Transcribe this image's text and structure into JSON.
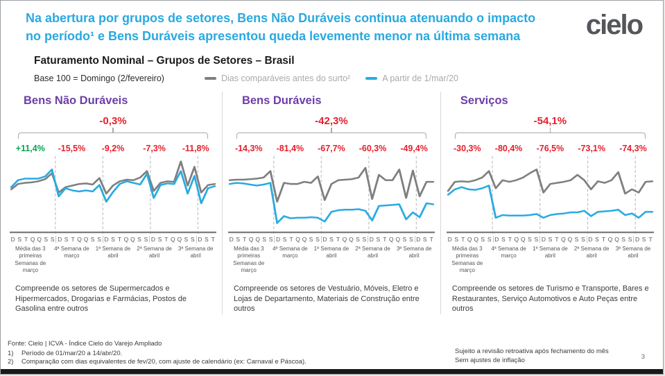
{
  "header": {
    "headline_line1": "Na abertura por grupos de setores, Bens Não Duráveis continua atenuando o impacto",
    "headline_line2": "no período¹ e Bens Duráveis apresentou queda levemente menor na última semana",
    "logo_text": "cielo"
  },
  "title_block": {
    "title": "Faturamento Nominal – Grupos de Setores – Brasil",
    "base_note": "Base 100 = Domingo (2/fevereiro)",
    "legend": [
      {
        "label": "Dias comparáveis antes do surto²",
        "color": "#7F7F7F"
      },
      {
        "label": "A partir de 1/mar/20",
        "color": "#29ABE2"
      }
    ]
  },
  "colors": {
    "accent_blue": "#29A9E1",
    "purple": "#6C3EA6",
    "red": "#E4202C",
    "green": "#00A651",
    "gray_line": "#7F7F7F",
    "cyan_line": "#29ABE2"
  },
  "charts_common": {
    "day_letters": [
      "D",
      "S",
      "T",
      "Q",
      "Q",
      "S",
      "S",
      "D",
      "S",
      "T",
      "Q",
      "Q",
      "S",
      "S",
      "D",
      "S",
      "T",
      "Q",
      "Q",
      "S",
      "S",
      "D",
      "S",
      "T",
      "Q",
      "Q",
      "S",
      "S",
      "D",
      "S",
      "T"
    ],
    "week_labels": [
      "Média das 3 primeiras Semanas de março",
      "4ª Semana de março",
      "1ª Semana de abril",
      "2ª Semana de abril",
      "3ª Semana de abril"
    ]
  },
  "sections": [
    {
      "title": "Bens Não Duráveis",
      "total": "-0,3%",
      "weekly": [
        {
          "value": "+11,4%",
          "color": "#00A651"
        },
        {
          "value": "-15,5%",
          "color": "#E4202C"
        },
        {
          "value": "-9,2%",
          "color": "#E4202C"
        },
        {
          "value": "-7,3%",
          "color": "#E4202C"
        },
        {
          "value": "-11,8%",
          "color": "#E4202C"
        }
      ],
      "description": "Compreende os setores de Supermercados e Hipermercados, Drogarias e Farmácias, Postos de Gasolina entre outros"
    },
    {
      "title": "Bens Duráveis",
      "total": "-42,3%",
      "weekly": [
        {
          "value": "-14,3%",
          "color": "#E4202C"
        },
        {
          "value": "-81,4%",
          "color": "#E4202C"
        },
        {
          "value": "-67,7%",
          "color": "#E4202C"
        },
        {
          "value": "-60,3%",
          "color": "#E4202C"
        },
        {
          "value": "-49,4%",
          "color": "#E4202C"
        }
      ],
      "description": "Compreende os setores de Vestuário, Móveis, Eletro e Lojas de Departamento, Materiais de Construção entre outros"
    },
    {
      "title": "Serviços",
      "total": "-54,1%",
      "weekly": [
        {
          "value": "-30,3%",
          "color": "#E4202C"
        },
        {
          "value": "-80,4%",
          "color": "#E4202C"
        },
        {
          "value": "-76,5%",
          "color": "#E4202C"
        },
        {
          "value": "-73,1%",
          "color": "#E4202C"
        },
        {
          "value": "-74,3%",
          "color": "#E4202C"
        }
      ],
      "description": "Compreende os setores de Turismo e Transporte, Bares e Restaurantes, Serviço Automotivos e Auto Peças entre outros"
    }
  ],
  "chart_data": [
    {
      "type": "line",
      "title": "Bens Não Duráveis",
      "subtitle": "Base 100 = Domingo (2/fevereiro)",
      "total_change": "-0,3%",
      "weekly_changes": [
        "+11,4%",
        "-15,5%",
        "-9,2%",
        "-7,3%",
        "-11,8%"
      ],
      "x_labels": [
        "D",
        "S",
        "T",
        "Q",
        "Q",
        "S",
        "S",
        "D",
        "S",
        "T",
        "Q",
        "Q",
        "S",
        "S",
        "D",
        "S",
        "T",
        "Q",
        "Q",
        "S",
        "S",
        "D",
        "S",
        "T",
        "Q",
        "Q",
        "S",
        "S",
        "D",
        "S",
        "T"
      ],
      "week_groups": [
        "Média das 3 primeiras Semanas de março",
        "4ª Semana de março",
        "1ª Semana de abril",
        "2ª Semana de abril",
        "3ª Semana de abril"
      ],
      "ylim": [
        0,
        140
      ],
      "grid": false,
      "series": [
        {
          "name": "Dias comparáveis antes do surto",
          "color": "#7F7F7F",
          "values": [
            78,
            88,
            90,
            91,
            93,
            97,
            108,
            72,
            82,
            85,
            88,
            89,
            87,
            99,
            70,
            85,
            93,
            96,
            95,
            100,
            112,
            75,
            90,
            93,
            92,
            130,
            85,
            120,
            72,
            86,
            88
          ]
        },
        {
          "name": "A partir de 1/mar/20",
          "color": "#29ABE2",
          "values": [
            82,
            95,
            98,
            98,
            98,
            102,
            115,
            65,
            80,
            76,
            74,
            76,
            74,
            86,
            55,
            73,
            88,
            93,
            90,
            87,
            107,
            62,
            86,
            89,
            88,
            112,
            70,
            103,
            52,
            80,
            84
          ]
        }
      ]
    },
    {
      "type": "line",
      "title": "Bens Duráveis",
      "subtitle": "Base 100 = Domingo (2/fevereiro)",
      "total_change": "-42,3%",
      "weekly_changes": [
        "-14,3%",
        "-81,4%",
        "-67,7%",
        "-60,3%",
        "-49,4%"
      ],
      "x_labels": [
        "D",
        "S",
        "T",
        "Q",
        "Q",
        "S",
        "S",
        "D",
        "S",
        "T",
        "Q",
        "Q",
        "S",
        "S",
        "D",
        "S",
        "T",
        "Q",
        "Q",
        "S",
        "S",
        "D",
        "S",
        "T",
        "Q",
        "Q",
        "S",
        "S",
        "D",
        "S",
        "T"
      ],
      "week_groups": [
        "Média das 3 primeiras Semanas de março",
        "4ª Semana de março",
        "1ª Semana de abril",
        "2ª Semana de abril",
        "3ª Semana de abril"
      ],
      "ylim": [
        0,
        140
      ],
      "grid": false,
      "series": [
        {
          "name": "Dias comparáveis antes do surto",
          "color": "#7F7F7F",
          "values": [
            95,
            96,
            96,
            97,
            98,
            100,
            112,
            55,
            90,
            88,
            88,
            92,
            90,
            102,
            58,
            88,
            95,
            96,
            97,
            100,
            118,
            60,
            105,
            95,
            95,
            115,
            62,
            113,
            65,
            92,
            92
          ]
        },
        {
          "name": "A partir de 1/mar/20",
          "color": "#29ABE2",
          "values": [
            88,
            90,
            89,
            87,
            85,
            87,
            90,
            15,
            28,
            24,
            25,
            25,
            26,
            25,
            18,
            36,
            39,
            40,
            40,
            41,
            38,
            20,
            47,
            48,
            49,
            50,
            22,
            35,
            26,
            52,
            50
          ]
        }
      ]
    },
    {
      "type": "line",
      "title": "Serviços",
      "subtitle": "Base 100 = Domingo (2/fevereiro)",
      "total_change": "-54,1%",
      "weekly_changes": [
        "-30,3%",
        "-80,4%",
        "-76,5%",
        "-73,1%",
        "-74,3%"
      ],
      "x_labels": [
        "D",
        "S",
        "T",
        "Q",
        "Q",
        "S",
        "S",
        "D",
        "S",
        "T",
        "Q",
        "Q",
        "S",
        "S",
        "D",
        "S",
        "T",
        "Q",
        "Q",
        "S",
        "S",
        "D",
        "S",
        "T",
        "Q",
        "Q",
        "S",
        "S",
        "D",
        "S",
        "T"
      ],
      "week_groups": [
        "Média das 3 primeiras Semanas de março",
        "4ª Semana de março",
        "1ª Semana de abril",
        "2ª Semana de abril",
        "3ª Semana de abril"
      ],
      "ylim": [
        0,
        140
      ],
      "grid": false,
      "series": [
        {
          "name": "Dias comparáveis antes do surto",
          "color": "#7F7F7F",
          "values": [
            75,
            92,
            93,
            92,
            95,
            100,
            112,
            80,
            95,
            92,
            95,
            100,
            108,
            115,
            72,
            88,
            90,
            92,
            95,
            105,
            95,
            78,
            93,
            90,
            95,
            110,
            70,
            78,
            72,
            92,
            93
          ]
        },
        {
          "name": "A partir de 1/mar/20",
          "color": "#29ABE2",
          "values": [
            68,
            78,
            82,
            78,
            77,
            80,
            85,
            25,
            30,
            29,
            29,
            29,
            30,
            32,
            25,
            30,
            32,
            33,
            35,
            35,
            38,
            28,
            36,
            37,
            38,
            40,
            30,
            33,
            25,
            36,
            36
          ]
        }
      ]
    }
  ],
  "footer": {
    "source": "Fonte: Cielo | ICVA - Índice Cielo do Varejo Ampliado",
    "notes": [
      {
        "num": "1)",
        "text": "Período de 01/mar/20 a 14/abr/20."
      },
      {
        "num": "2)",
        "text": "Comparação com dias equivalentes de fev/20, com ajuste de calendário (ex: Carnaval e Páscoa)."
      }
    ],
    "right_note_1": "Sujeito a revisão retroativa após fechamento do mês",
    "right_note_2": "Sem ajustes de inflação",
    "page_number": "3"
  }
}
